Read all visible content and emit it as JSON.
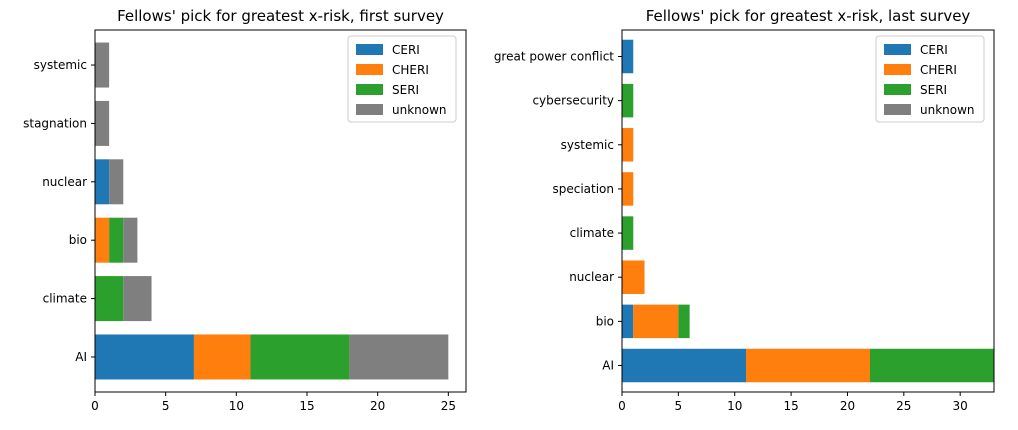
{
  "colors": {
    "CERI": "#1f77b4",
    "CHERI": "#ff7f0e",
    "SERI": "#2ca02c",
    "unknown": "#7f7f7f"
  },
  "chart_data": [
    {
      "type": "bar",
      "orientation": "horizontal",
      "stacked": true,
      "title": "Fellows' pick for greatest x-risk, first survey",
      "xlabel": "",
      "ylabel": "",
      "categories": [
        "AI",
        "climate",
        "bio",
        "nuclear",
        "stagnation",
        "systemic"
      ],
      "series": [
        {
          "name": "CERI",
          "values": [
            7,
            0,
            0,
            1,
            0,
            0
          ]
        },
        {
          "name": "CHERI",
          "values": [
            4,
            0,
            1,
            0,
            0,
            0
          ]
        },
        {
          "name": "SERI",
          "values": [
            7,
            2,
            1,
            0,
            0,
            0
          ]
        },
        {
          "name": "unknown",
          "values": [
            7,
            2,
            1,
            1,
            1,
            1
          ]
        }
      ],
      "xlim": [
        0,
        26.25
      ],
      "xticks": [
        0,
        5,
        10,
        15,
        20,
        25
      ],
      "legend": "top-right",
      "grid": false
    },
    {
      "type": "bar",
      "orientation": "horizontal",
      "stacked": true,
      "title": "Fellows' pick for greatest x-risk, last survey",
      "xlabel": "",
      "ylabel": "",
      "categories": [
        "AI",
        "bio",
        "nuclear",
        "climate",
        "speciation",
        "systemic",
        "cybersecurity",
        "great power conflict"
      ],
      "series": [
        {
          "name": "CERI",
          "values": [
            11,
            1,
            0,
            0,
            0,
            0,
            0,
            1
          ]
        },
        {
          "name": "CHERI",
          "values": [
            11,
            4,
            2,
            0,
            1,
            1,
            0,
            0
          ]
        },
        {
          "name": "SERI",
          "values": [
            11,
            1,
            0,
            1,
            0,
            0,
            1,
            0
          ]
        },
        {
          "name": "unknown",
          "values": [
            0,
            0,
            0,
            0,
            0,
            0,
            0,
            0
          ]
        }
      ],
      "xlim": [
        0,
        33
      ],
      "xticks": [
        0,
        5,
        10,
        15,
        20,
        25,
        30
      ],
      "legend": "top-right",
      "grid": false
    }
  ]
}
